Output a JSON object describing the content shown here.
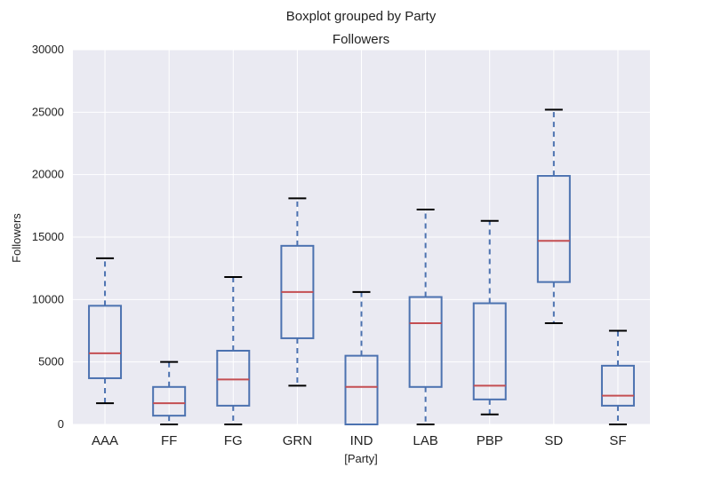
{
  "chart_data": {
    "type": "boxplot",
    "suptitle": "Boxplot grouped by Party",
    "title": "Followers",
    "xlabel": "[Party]",
    "ylabel": "Followers",
    "ylim": [
      0,
      30000
    ],
    "yticks": [
      "0",
      "5000",
      "10000",
      "15000",
      "20000",
      "25000",
      "30000"
    ],
    "grid": true,
    "colors": {
      "background": "#eaeaf2",
      "grid": "#ffffff",
      "box": "#4c72b0",
      "median": "#c44e52",
      "whisker_cap": "#000000"
    },
    "categories": [
      "AAA",
      "FF",
      "FG",
      "GRN",
      "IND",
      "LAB",
      "PBP",
      "SD",
      "SF"
    ],
    "boxes": [
      {
        "name": "AAA",
        "whislo": 1700,
        "q1": 3700,
        "med": 5700,
        "q3": 9500,
        "whishi": 13300
      },
      {
        "name": "FF",
        "whislo": 0,
        "q1": 700,
        "med": 1700,
        "q3": 3000,
        "whishi": 5000
      },
      {
        "name": "FG",
        "whislo": 0,
        "q1": 1500,
        "med": 3600,
        "q3": 5900,
        "whishi": 11800
      },
      {
        "name": "GRN",
        "whislo": 3100,
        "q1": 6900,
        "med": 10600,
        "q3": 14300,
        "whishi": 18100
      },
      {
        "name": "IND",
        "whislo": 0,
        "q1": 0,
        "med": 3000,
        "q3": 5500,
        "whishi": 10600
      },
      {
        "name": "LAB",
        "whislo": 0,
        "q1": 3000,
        "med": 8100,
        "q3": 10200,
        "whishi": 17200
      },
      {
        "name": "PBP",
        "whislo": 800,
        "q1": 2000,
        "med": 3100,
        "q3": 9700,
        "whishi": 16300
      },
      {
        "name": "SD",
        "whislo": 8100,
        "q1": 11400,
        "med": 14700,
        "q3": 19900,
        "whishi": 25200
      },
      {
        "name": "SF",
        "whislo": 0,
        "q1": 1500,
        "med": 2300,
        "q3": 4700,
        "whishi": 7500
      }
    ]
  }
}
